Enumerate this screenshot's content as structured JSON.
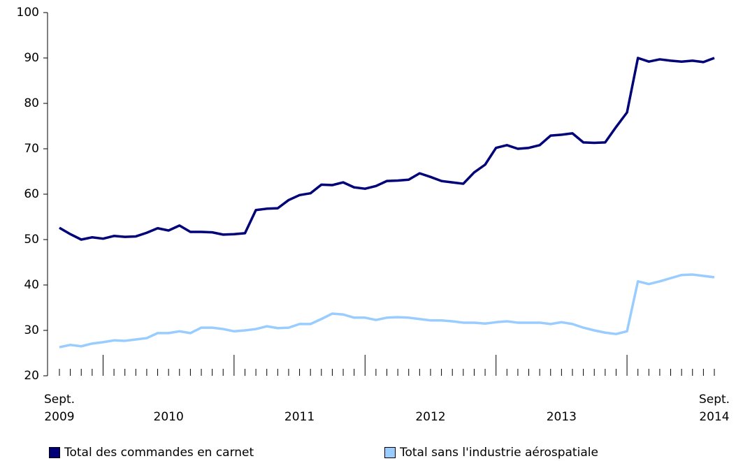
{
  "chart_data": {
    "type": "line",
    "categories": [
      "Sept. 2009",
      null,
      null,
      null,
      null,
      null,
      null,
      null,
      null,
      null,
      "2010",
      null,
      null,
      null,
      null,
      null,
      null,
      null,
      null,
      null,
      null,
      null,
      "2011",
      null,
      null,
      null,
      null,
      null,
      null,
      null,
      null,
      null,
      null,
      null,
      "2012",
      null,
      null,
      null,
      null,
      null,
      null,
      null,
      null,
      null,
      null,
      null,
      "2013",
      null,
      null,
      null,
      null,
      null,
      null,
      null,
      null,
      null,
      null,
      null,
      null,
      null,
      "Sept. 2014"
    ],
    "series": [
      {
        "name": "Total des commandes en carnet",
        "color": "#000078",
        "values": [
          52.6,
          51.2,
          50.0,
          50.5,
          50.2,
          50.8,
          50.6,
          50.7,
          51.5,
          52.5,
          52.0,
          53.1,
          51.7,
          51.7,
          51.6,
          51.1,
          51.2,
          51.4,
          56.5,
          56.8,
          56.9,
          58.7,
          59.8,
          60.2,
          62.1,
          62.0,
          62.6,
          61.5,
          61.2,
          61.8,
          62.9,
          63.0,
          63.2,
          64.6,
          63.8,
          62.9,
          62.6,
          62.3,
          64.8,
          66.5,
          70.2,
          70.8,
          70.0,
          70.2,
          70.8,
          72.9,
          73.1,
          73.4,
          71.4,
          71.3,
          71.4,
          74.8,
          78.0,
          90.0,
          89.2,
          89.7,
          89.4,
          89.2,
          89.4,
          89.1,
          90.0
        ]
      },
      {
        "name": "Total sans l'industrie aérospatiale",
        "color": "#99ccff",
        "values": [
          26.3,
          26.8,
          26.5,
          27.1,
          27.4,
          27.8,
          27.7,
          28.0,
          28.3,
          29.4,
          29.4,
          29.8,
          29.4,
          30.6,
          30.6,
          30.3,
          29.8,
          30.0,
          30.3,
          30.9,
          30.5,
          30.6,
          31.4,
          31.4,
          32.5,
          33.7,
          33.5,
          32.8,
          32.8,
          32.3,
          32.8,
          32.9,
          32.8,
          32.5,
          32.2,
          32.2,
          32.0,
          31.7,
          31.7,
          31.5,
          31.8,
          32.0,
          31.7,
          31.7,
          31.7,
          31.4,
          31.8,
          31.4,
          30.6,
          30.0,
          29.5,
          29.2,
          29.8,
          40.8,
          40.2,
          40.8,
          41.5,
          42.2,
          42.3,
          42.0,
          41.7
        ]
      }
    ],
    "ylim": [
      20,
      100
    ],
    "yticks": [
      20,
      30,
      40,
      50,
      60,
      70,
      80,
      90,
      100
    ],
    "grid": false
  }
}
